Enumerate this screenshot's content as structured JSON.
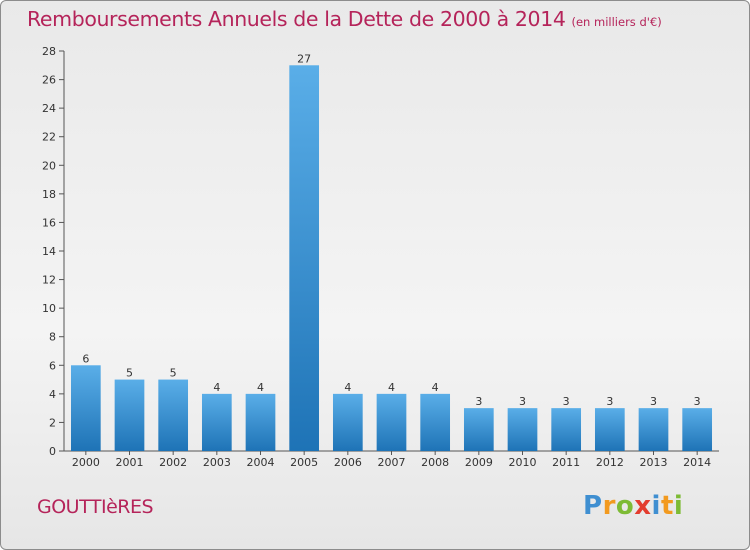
{
  "header": {
    "title": "Remboursements Annuels de la Dette de 2000 à 2014",
    "unit_note": "(en milliers d'€)"
  },
  "footer": {
    "commune": "GOUTTIèRES",
    "brand": [
      "P",
      "r",
      "o",
      "x",
      "i",
      "t",
      "i"
    ]
  },
  "colors": {
    "title": "#b5245a",
    "bar_light": "#5aaee8",
    "bar_dark": "#1e73b6"
  },
  "chart_data": {
    "type": "bar",
    "title": "Remboursements Annuels de la Dette de 2000 à 2014",
    "subtitle": "(en milliers d'€)",
    "categories": [
      "2000",
      "2001",
      "2002",
      "2003",
      "2004",
      "2005",
      "2006",
      "2007",
      "2008",
      "2009",
      "2010",
      "2011",
      "2012",
      "2013",
      "2014"
    ],
    "values": [
      6,
      5,
      5,
      4,
      4,
      27,
      4,
      4,
      4,
      3,
      3,
      3,
      3,
      3,
      3
    ],
    "data_labels": [
      "6",
      "5",
      "5",
      "4",
      "4",
      "27",
      "4",
      "4",
      "4",
      "3",
      "3",
      "3",
      "3",
      "3",
      "3"
    ],
    "y_ticks": [
      "0",
      "2",
      "4",
      "6",
      "8",
      "10",
      "12",
      "14",
      "16",
      "18",
      "20",
      "22",
      "24",
      "26",
      "28"
    ],
    "xlabel": "",
    "ylabel": "",
    "ylim": [
      0,
      28
    ],
    "grid": false,
    "legend": "none"
  }
}
